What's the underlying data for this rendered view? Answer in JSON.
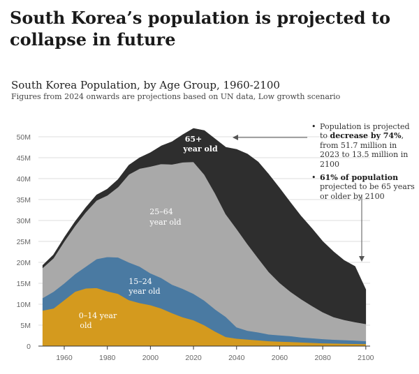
{
  "headline": "South Korea’s population is projected to collapse in future",
  "chart_data": {
    "type": "area",
    "stacked": true,
    "title": "South Korea Population, by Age Group, 1960-2100",
    "subtitle": "Figures from 2024 onwards are projections based on UN data, Low growth scenario",
    "xlabel": "",
    "ylabel": "",
    "x": [
      1950,
      1955,
      1960,
      1965,
      1970,
      1975,
      1980,
      1985,
      1990,
      1995,
      2000,
      2005,
      2010,
      2015,
      2020,
      2025,
      2030,
      2035,
      2040,
      2045,
      2050,
      2055,
      2060,
      2065,
      2070,
      2075,
      2080,
      2085,
      2090,
      2095,
      2100
    ],
    "series": [
      {
        "name": "0-14 year old",
        "color": "#d49a1e",
        "values": [
          8.5,
          9.0,
          11.0,
          13.0,
          13.8,
          13.9,
          13.1,
          12.5,
          11.0,
          10.3,
          9.8,
          9.0,
          7.9,
          6.9,
          6.2,
          5.0,
          3.5,
          2.2,
          1.8,
          1.6,
          1.4,
          1.2,
          1.1,
          1.0,
          0.9,
          0.8,
          0.7,
          0.65,
          0.6,
          0.55,
          0.5
        ]
      },
      {
        "name": "15-24 year old",
        "color": "#4a7aa2",
        "values": [
          3.0,
          4.0,
          4.0,
          4.2,
          5.2,
          6.9,
          8.2,
          8.7,
          9.0,
          8.7,
          7.6,
          7.3,
          6.8,
          6.8,
          6.3,
          5.9,
          5.3,
          4.8,
          2.7,
          2.1,
          1.9,
          1.6,
          1.5,
          1.4,
          1.2,
          1.1,
          1.0,
          0.9,
          0.85,
          0.78,
          0.7
        ]
      },
      {
        "name": "25-64 year old",
        "color": "#a9a9a9",
        "values": [
          7.2,
          8.0,
          10.0,
          11.5,
          13.0,
          14.0,
          14.7,
          16.8,
          21.0,
          23.4,
          25.5,
          27.2,
          28.7,
          30.2,
          31.5,
          30.1,
          27.7,
          24.5,
          23.5,
          20.7,
          17.7,
          14.9,
          12.5,
          10.6,
          9.1,
          7.7,
          6.4,
          5.4,
          4.8,
          4.4,
          4.1
        ]
      },
      {
        "name": "65+ year old",
        "color": "#2e2e2e",
        "values": [
          0.6,
          0.8,
          0.9,
          1.0,
          1.1,
          1.3,
          1.5,
          1.8,
          2.2,
          2.6,
          3.3,
          4.3,
          5.4,
          6.6,
          8.0,
          10.5,
          13.0,
          16.0,
          19.0,
          21.5,
          23.0,
          23.3,
          22.6,
          21.3,
          19.8,
          18.5,
          16.9,
          15.6,
          14.2,
          13.3,
          8.2
        ]
      }
    ],
    "xlim": [
      1948,
      2102
    ],
    "ylim": [
      0,
      50
    ],
    "x_ticks": [
      1960,
      1980,
      2000,
      2020,
      2040,
      2060,
      2080,
      2100
    ],
    "y_ticks": [
      0,
      5,
      10,
      15,
      20,
      25,
      30,
      35,
      40,
      45,
      50
    ],
    "x_tick_labels": [
      "1960",
      "1980",
      "2000",
      "2020",
      "2040",
      "2060",
      "2080",
      "2100"
    ],
    "y_tick_labels": [
      "0",
      "5M",
      "10M",
      "15M",
      "20M",
      "25M",
      "30M",
      "35M",
      "40M",
      "45M",
      "50M"
    ],
    "grid": "horizontal",
    "area_labels": {
      "s65_line1": "65+",
      "s65_line2": "year old",
      "s25_line1": "25–64",
      "s25_line2": "year old",
      "s15_line1": "15–24",
      "s15_line2": "year old",
      "s0_line1": "0–14 year",
      "s0_line2": "old"
    },
    "annotations": [
      {
        "text_before": "Population is projected to ",
        "bold": "decrease by 74%",
        "text_after": ", from 51.7 million in 2023 to 13.5 million in 2100"
      },
      {
        "bold": "61% of population",
        "text_after": " projected to be 65 years or older by 2100"
      }
    ]
  }
}
